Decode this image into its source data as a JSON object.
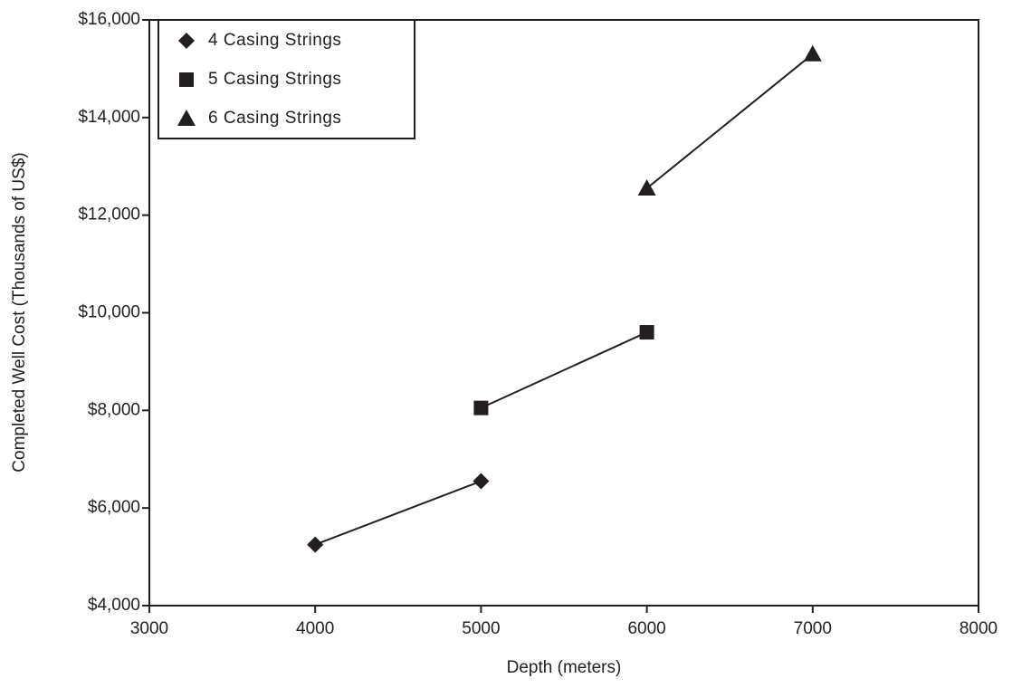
{
  "chart_data": {
    "type": "line",
    "x_label": "Depth (meters)",
    "y_label": "Completed Well Cost (Thousands of US$)",
    "xlim": [
      3000,
      8000
    ],
    "xticks": [
      3000,
      4000,
      5000,
      6000,
      7000,
      8000
    ],
    "ylim": [
      4000,
      16000
    ],
    "yticks": [
      {
        "value": 4000,
        "label": "$4,000"
      },
      {
        "value": 6000,
        "label": "$6,000"
      },
      {
        "value": 8000,
        "label": "$8,000"
      },
      {
        "value": 10000,
        "label": "$10,000"
      },
      {
        "value": 12000,
        "label": "$12,000"
      },
      {
        "value": 14000,
        "label": "$14,000"
      },
      {
        "value": 16000,
        "label": "$16,000"
      }
    ],
    "grid": false,
    "legend": "upper-left",
    "series": [
      {
        "name": "4 Casing Strings",
        "color": "#231f20",
        "marker": "diamond",
        "x": [
          4000,
          5000
        ],
        "values": [
          5250,
          6550
        ]
      },
      {
        "name": "5 Casing Strings",
        "color": "#231f20",
        "marker": "square",
        "x": [
          5000,
          6000
        ],
        "values": [
          8050,
          9600
        ]
      },
      {
        "name": "6 Casing Strings",
        "color": "#231f20",
        "marker": "triangle",
        "x": [
          6000,
          7000
        ],
        "values": [
          12550,
          15300
        ]
      }
    ]
  }
}
